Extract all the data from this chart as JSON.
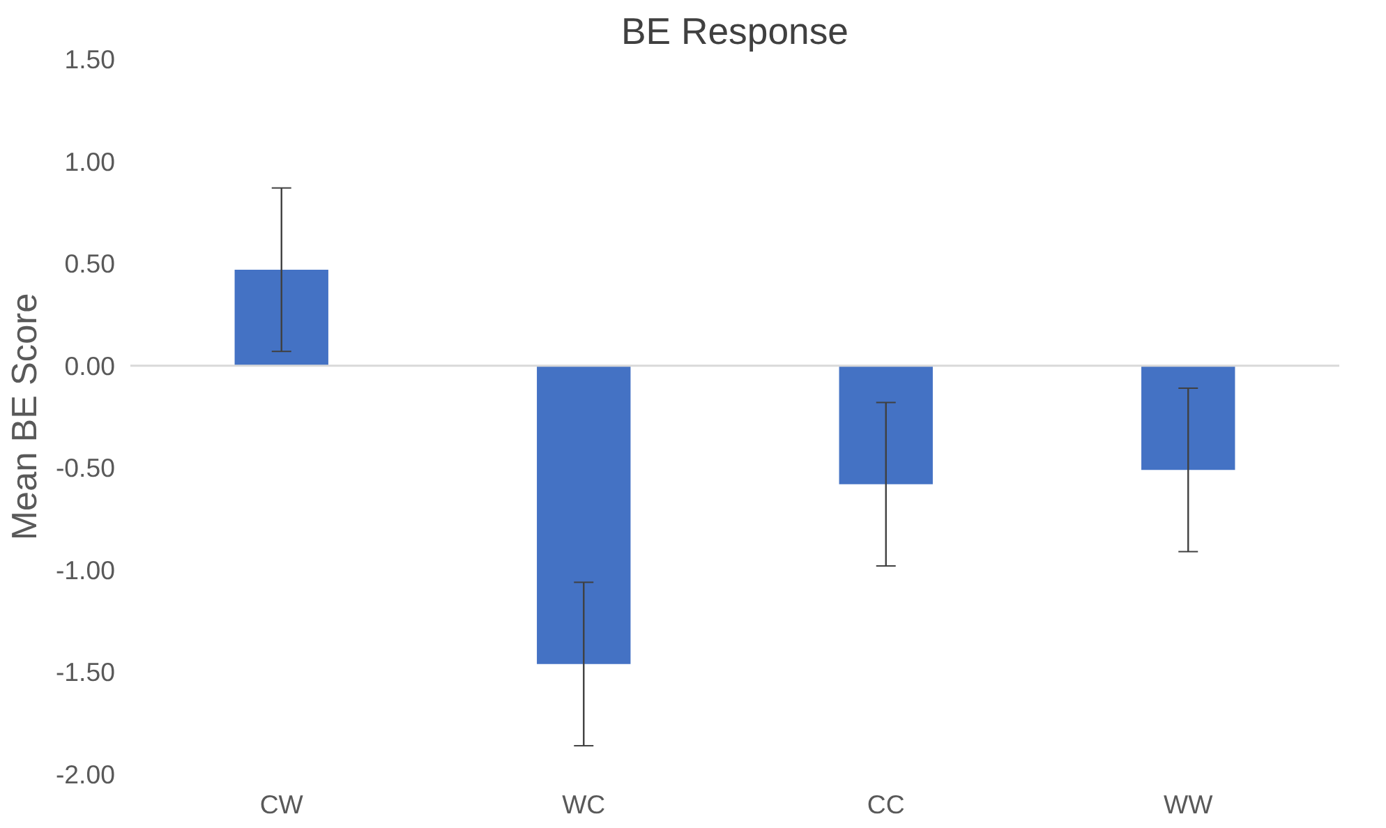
{
  "chart_data": {
    "type": "bar",
    "title": "BE Response",
    "ylabel": "Mean BE Score",
    "categories": [
      "CW",
      "WC",
      "CC",
      "WW"
    ],
    "values": [
      0.47,
      -1.46,
      -0.58,
      -0.51
    ],
    "errors": [
      0.4,
      0.4,
      0.4,
      0.4
    ],
    "color": "#4472c4",
    "ylim": [
      -2.0,
      1.5
    ],
    "yticks": [
      {
        "value": -2.0,
        "label": "-2.00"
      },
      {
        "value": -1.5,
        "label": "-1.50"
      },
      {
        "value": -1.0,
        "label": "-1.00"
      },
      {
        "value": -0.5,
        "label": "-0.50"
      },
      {
        "value": 0,
        "label": "0.00"
      },
      {
        "value": 0.5,
        "label": "0.50"
      },
      {
        "value": 1.0,
        "label": "1.00"
      },
      {
        "value": 1.5,
        "label": "1.50"
      }
    ],
    "ref_lines": [
      {
        "axis": "y",
        "value": 0,
        "color": "#d9d9d9"
      }
    ]
  }
}
